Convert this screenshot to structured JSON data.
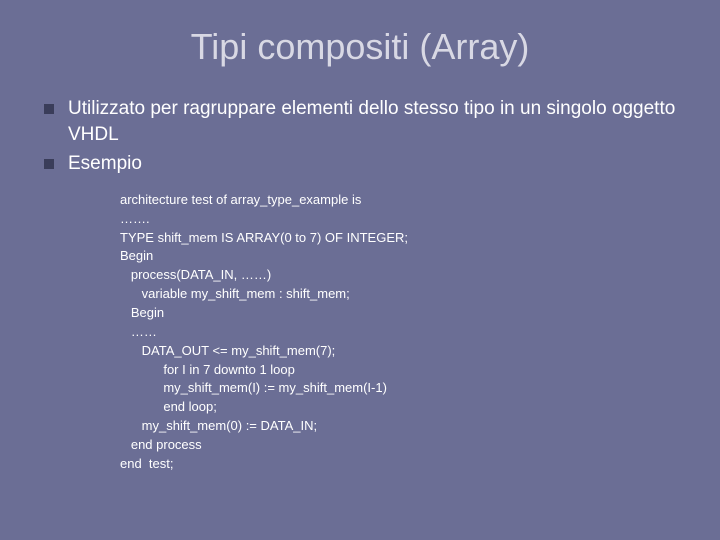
{
  "slide": {
    "title": "Tipi compositi (Array)",
    "title_color": "#d8d8e4",
    "title_fontsize": 36,
    "background_color": "#6b6e95",
    "bullet_color": "#3a3d5a",
    "text_color": "#ffffff",
    "bullets": [
      {
        "text": "Utilizzato per ragruppare elementi dello stesso tipo in un singolo oggetto VHDL"
      },
      {
        "text": "Esempio"
      }
    ],
    "code": {
      "fontsize": 13,
      "lines": [
        "architecture test of array_type_example is",
        "…….",
        "TYPE shift_mem IS ARRAY(0 to 7) OF INTEGER;",
        "Begin",
        "   process(DATA_IN, ……)",
        "      variable my_shift_mem : shift_mem;",
        "   Begin",
        "   ……",
        "      DATA_OUT <= my_shift_mem(7);",
        "            for I in 7 downto 1 loop",
        "            my_shift_mem(I) := my_shift_mem(I-1)",
        "            end loop;",
        "      my_shift_mem(0) := DATA_IN;",
        "   end process",
        "end  test;"
      ]
    }
  }
}
